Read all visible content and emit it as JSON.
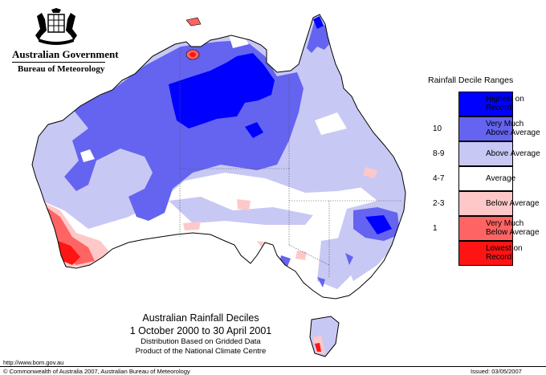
{
  "header": {
    "gov_name": "Australian Government",
    "bureau_name": "Bureau of Meteorology",
    "crest_icon": "commonwealth-coat-of-arms-icon"
  },
  "map": {
    "title": "Australian Rainfall Deciles",
    "period": "1 October 2000 to 30 April 2001",
    "note_line1": "Distribution Based on Gridded Data",
    "note_line2": "Product of the National Climate Centre"
  },
  "legend": {
    "title": "Rainfall Decile Ranges",
    "items": [
      {
        "code": "",
        "label": "Highest on Record",
        "color": "#0000ff"
      },
      {
        "code": "10",
        "label": "Very Much Above Average",
        "color": "#6464f0"
      },
      {
        "code": "8-9",
        "label": "Above Average",
        "color": "#c8c8f5"
      },
      {
        "code": "4-7",
        "label": "Average",
        "color": "#ffffff"
      },
      {
        "code": "2-3",
        "label": "Below Average",
        "color": "#ffc8c8"
      },
      {
        "code": "1",
        "label": "Very Much Below Average",
        "color": "#ff6464"
      },
      {
        "code": "",
        "label": "Lowest on Record",
        "color": "#ff1414"
      }
    ]
  },
  "footer": {
    "url": "http://www.bom.gov.au",
    "copyright": "© Commonwealth of Australia 2007, Australian Bureau of Meteorology",
    "issued": "Issued: 03/05/2007"
  }
}
